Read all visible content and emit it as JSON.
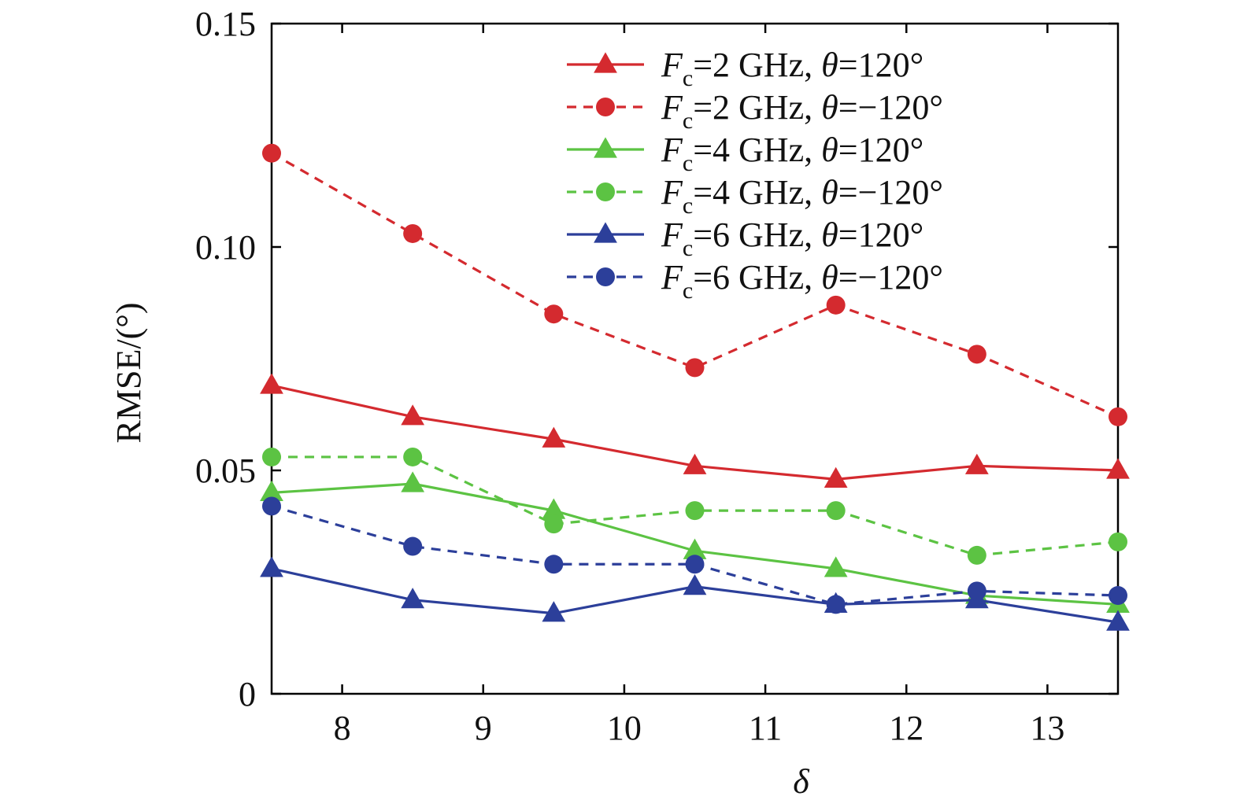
{
  "chart_data": {
    "type": "line",
    "xlabel": "δ",
    "ylabel": "RMSE/(°)",
    "xlim": [
      7.5,
      13.5
    ],
    "ylim": [
      0,
      0.15
    ],
    "xticks": [
      8,
      9,
      10,
      11,
      12,
      13
    ],
    "xtick_labels": [
      "8",
      "9",
      "10",
      "11",
      "12",
      "13"
    ],
    "yticks": [
      0,
      0.05,
      0.1,
      0.15
    ],
    "ytick_labels": [
      "0",
      "0.05",
      "0.10",
      "0.15"
    ],
    "grid": false,
    "legend_position": "top-right",
    "x": [
      7.5,
      8.5,
      9.5,
      10.5,
      11.5,
      12.5,
      13.5
    ],
    "series": [
      {
        "name": "Fc=2 GHz, θ=120°",
        "legend": {
          "sym": "F",
          "sub": "c",
          "rest": "=2 GHz, ",
          "theta": "θ",
          "tail": "=120°"
        },
        "color": "#d42a2f",
        "dash": false,
        "marker": "triangle",
        "values": [
          0.069,
          0.062,
          0.057,
          0.051,
          0.048,
          0.051,
          0.05
        ]
      },
      {
        "name": "Fc=2 GHz, θ=−120°",
        "legend": {
          "sym": "F",
          "sub": "c",
          "rest": "=2 GHz, ",
          "theta": "θ",
          "tail": "=−120°"
        },
        "color": "#d42a2f",
        "dash": true,
        "marker": "circle",
        "values": [
          0.121,
          0.103,
          0.085,
          0.073,
          0.087,
          0.076,
          0.062
        ]
      },
      {
        "name": "Fc=4 GHz, θ=120°",
        "legend": {
          "sym": "F",
          "sub": "c",
          "rest": "=4 GHz, ",
          "theta": "θ",
          "tail": "=120°"
        },
        "color": "#5cc343",
        "dash": false,
        "marker": "triangle",
        "values": [
          0.045,
          0.047,
          0.041,
          0.032,
          0.028,
          0.022,
          0.02
        ]
      },
      {
        "name": "Fc=4 GHz, θ=−120°",
        "legend": {
          "sym": "F",
          "sub": "c",
          "rest": "=4 GHz, ",
          "theta": "θ",
          "tail": "=−120°"
        },
        "color": "#5cc343",
        "dash": true,
        "marker": "circle",
        "values": [
          0.053,
          0.053,
          0.038,
          0.041,
          0.041,
          0.031,
          0.034
        ]
      },
      {
        "name": "Fc=6 GHz, θ=120°",
        "legend": {
          "sym": "F",
          "sub": "c",
          "rest": "=6 GHz, ",
          "theta": "θ",
          "tail": "=120°"
        },
        "color": "#2c3f9a",
        "dash": false,
        "marker": "triangle",
        "values": [
          0.028,
          0.021,
          0.018,
          0.024,
          0.02,
          0.021,
          0.016
        ]
      },
      {
        "name": "Fc=6 GHz, θ=−120°",
        "legend": {
          "sym": "F",
          "sub": "c",
          "rest": "=6 GHz, ",
          "theta": "θ",
          "tail": "=−120°"
        },
        "color": "#2c3f9a",
        "dash": true,
        "marker": "circle",
        "values": [
          0.042,
          0.033,
          0.029,
          0.029,
          0.02,
          0.023,
          0.022
        ]
      }
    ]
  }
}
